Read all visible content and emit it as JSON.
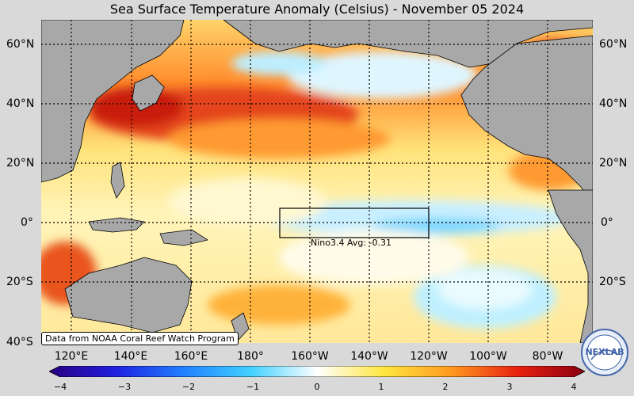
{
  "title": "Sea Surface Temperature Anomaly (Celsius) - November 05 2024",
  "lat_labels": [
    "60°N",
    "40°N",
    "20°N",
    "0°",
    "20°S",
    "40°S"
  ],
  "lon_labels": [
    "120°E",
    "140°E",
    "160°E",
    "180°",
    "160°W",
    "140°W",
    "120°W",
    "100°W",
    "80°W"
  ],
  "credit": "Data from NOAA Coral Reef Watch Program",
  "nino_label": "Nino3.4 Avg: -0.31",
  "colorbar": {
    "ticks": [
      "−4",
      "−3",
      "−2",
      "−1",
      "0",
      "1",
      "2",
      "3",
      "4"
    ],
    "range": [
      -4,
      4
    ]
  },
  "logo_text": "NEXLAB",
  "colors": {
    "land": "#a8a8a8",
    "frame_bg": "#d9d9d9"
  }
}
